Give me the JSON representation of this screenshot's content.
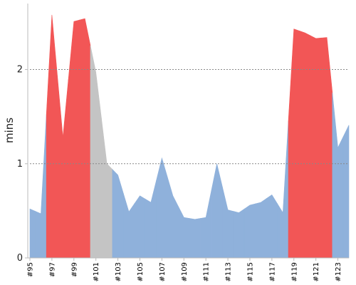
{
  "chart_data": {
    "type": "area",
    "ylabel": "mins",
    "ylim": [
      0,
      2.7
    ],
    "yticks": [
      0,
      1,
      2
    ],
    "grid": {
      "y": true,
      "x": false
    },
    "x_labels": [
      "#95",
      "#97",
      "#99",
      "#101",
      "#103",
      "#105",
      "#107",
      "#109",
      "#111",
      "#113",
      "#115",
      "#117",
      "#119",
      "#121",
      "#123"
    ],
    "builds": [
      {
        "build": "#95",
        "duration": 0.52,
        "status": "success"
      },
      {
        "build": "#96",
        "duration": 0.47,
        "status": "success"
      },
      {
        "build": "#97",
        "duration": 2.58,
        "status": "failure"
      },
      {
        "build": "#98",
        "duration": 1.28,
        "status": "failure"
      },
      {
        "build": "#99",
        "duration": 2.51,
        "status": "failure"
      },
      {
        "build": "#100",
        "duration": 2.54,
        "status": "failure"
      },
      {
        "build": "#101",
        "duration": 1.97,
        "status": "aborted"
      },
      {
        "build": "#102",
        "duration": 1.0,
        "status": "aborted"
      },
      {
        "build": "#103",
        "duration": 0.88,
        "status": "success"
      },
      {
        "build": "#104",
        "duration": 0.49,
        "status": "success"
      },
      {
        "build": "#105",
        "duration": 0.66,
        "status": "success"
      },
      {
        "build": "#106",
        "duration": 0.59,
        "status": "success"
      },
      {
        "build": "#107",
        "duration": 1.06,
        "status": "success"
      },
      {
        "build": "#108",
        "duration": 0.66,
        "status": "success"
      },
      {
        "build": "#109",
        "duration": 0.43,
        "status": "success"
      },
      {
        "build": "#110",
        "duration": 0.41,
        "status": "success"
      },
      {
        "build": "#111",
        "duration": 0.43,
        "status": "success"
      },
      {
        "build": "#112",
        "duration": 1.0,
        "status": "success"
      },
      {
        "build": "#113",
        "duration": 0.51,
        "status": "success"
      },
      {
        "build": "#114",
        "duration": 0.48,
        "status": "success"
      },
      {
        "build": "#115",
        "duration": 0.56,
        "status": "success"
      },
      {
        "build": "#116",
        "duration": 0.59,
        "status": "success"
      },
      {
        "build": "#117",
        "duration": 0.67,
        "status": "success"
      },
      {
        "build": "#118",
        "duration": 0.48,
        "status": "success"
      },
      {
        "build": "#119",
        "duration": 2.43,
        "status": "failure"
      },
      {
        "build": "#120",
        "duration": 2.39,
        "status": "failure"
      },
      {
        "build": "#121",
        "duration": 2.33,
        "status": "failure"
      },
      {
        "build": "#122",
        "duration": 2.34,
        "status": "failure"
      },
      {
        "build": "#123",
        "duration": 1.17,
        "status": "success"
      },
      {
        "build": "#124",
        "duration": 1.41,
        "status": "success"
      }
    ],
    "colors": {
      "success": "#8fb1db",
      "failure": "#f25656",
      "aborted": "#c4c4c4"
    }
  }
}
